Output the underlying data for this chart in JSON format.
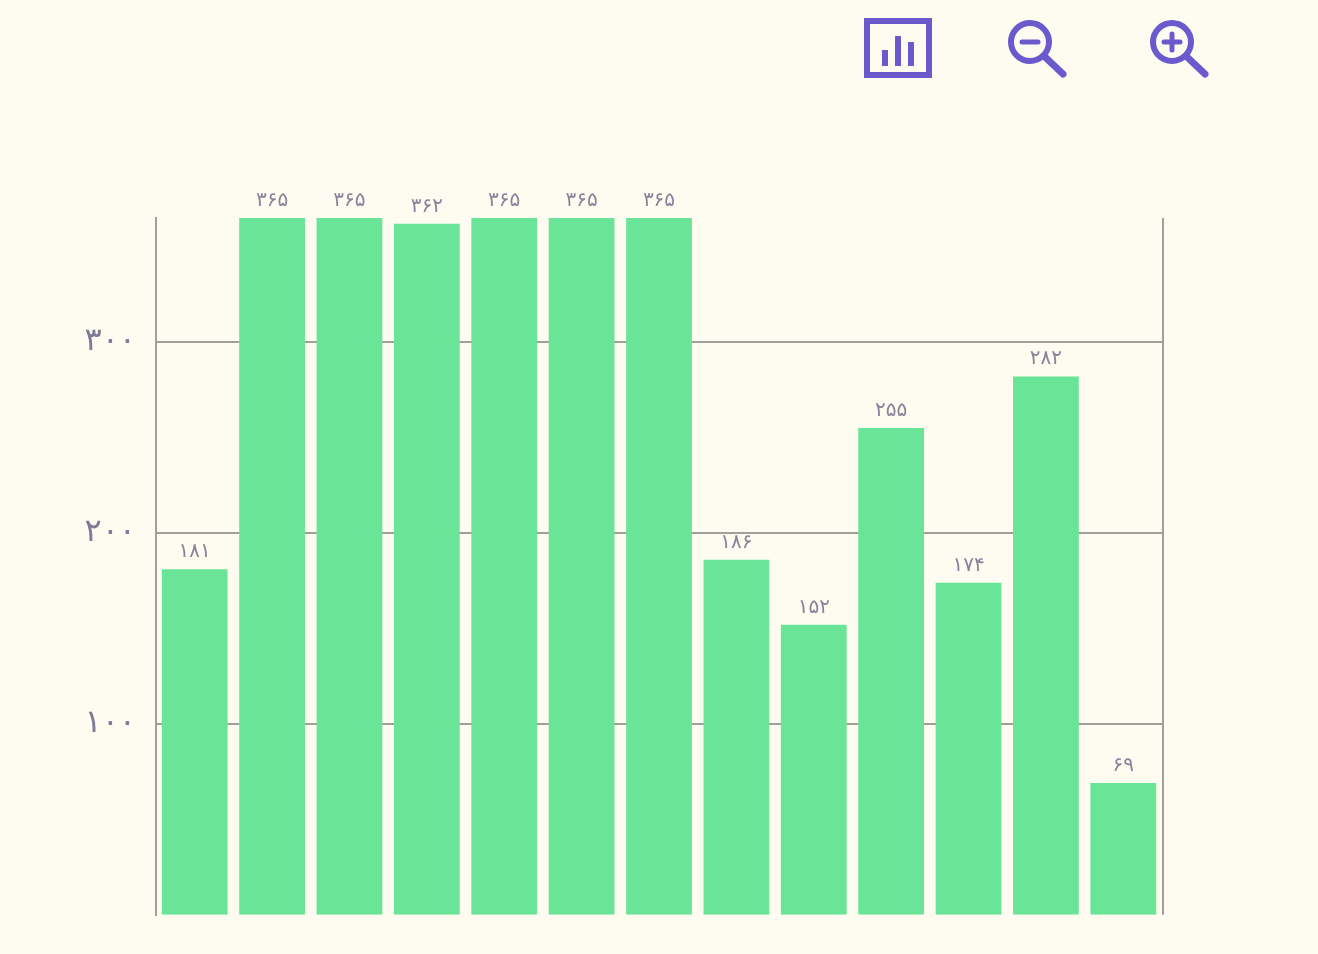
{
  "chart_data": {
    "type": "bar",
    "categories": [
      null,
      null,
      null,
      null,
      null,
      null,
      null,
      null,
      null,
      null,
      null,
      null,
      null
    ],
    "values": [
      181,
      365,
      365,
      362,
      365,
      365,
      365,
      186,
      152,
      255,
      174,
      282,
      69
    ],
    "value_labels": [
      "۱۸۱",
      "۳۶۵",
      "۳۶۵",
      "۳۶۲",
      "۳۶۵",
      "۳۶۵",
      "۳۶۵",
      "۱۸۶",
      "۱۵۲",
      "۲۵۵",
      "۱۷۴",
      "۲۸۲",
      "۶۹"
    ],
    "color": "#6ae496",
    "ylim": [
      0,
      365
    ],
    "yticks": [
      {
        "value": 100,
        "label": "۱۰۰"
      },
      {
        "value": 200,
        "label": "۲۰۰"
      },
      {
        "value": 300,
        "label": "۳۰۰"
      }
    ],
    "grid": "y"
  }
}
